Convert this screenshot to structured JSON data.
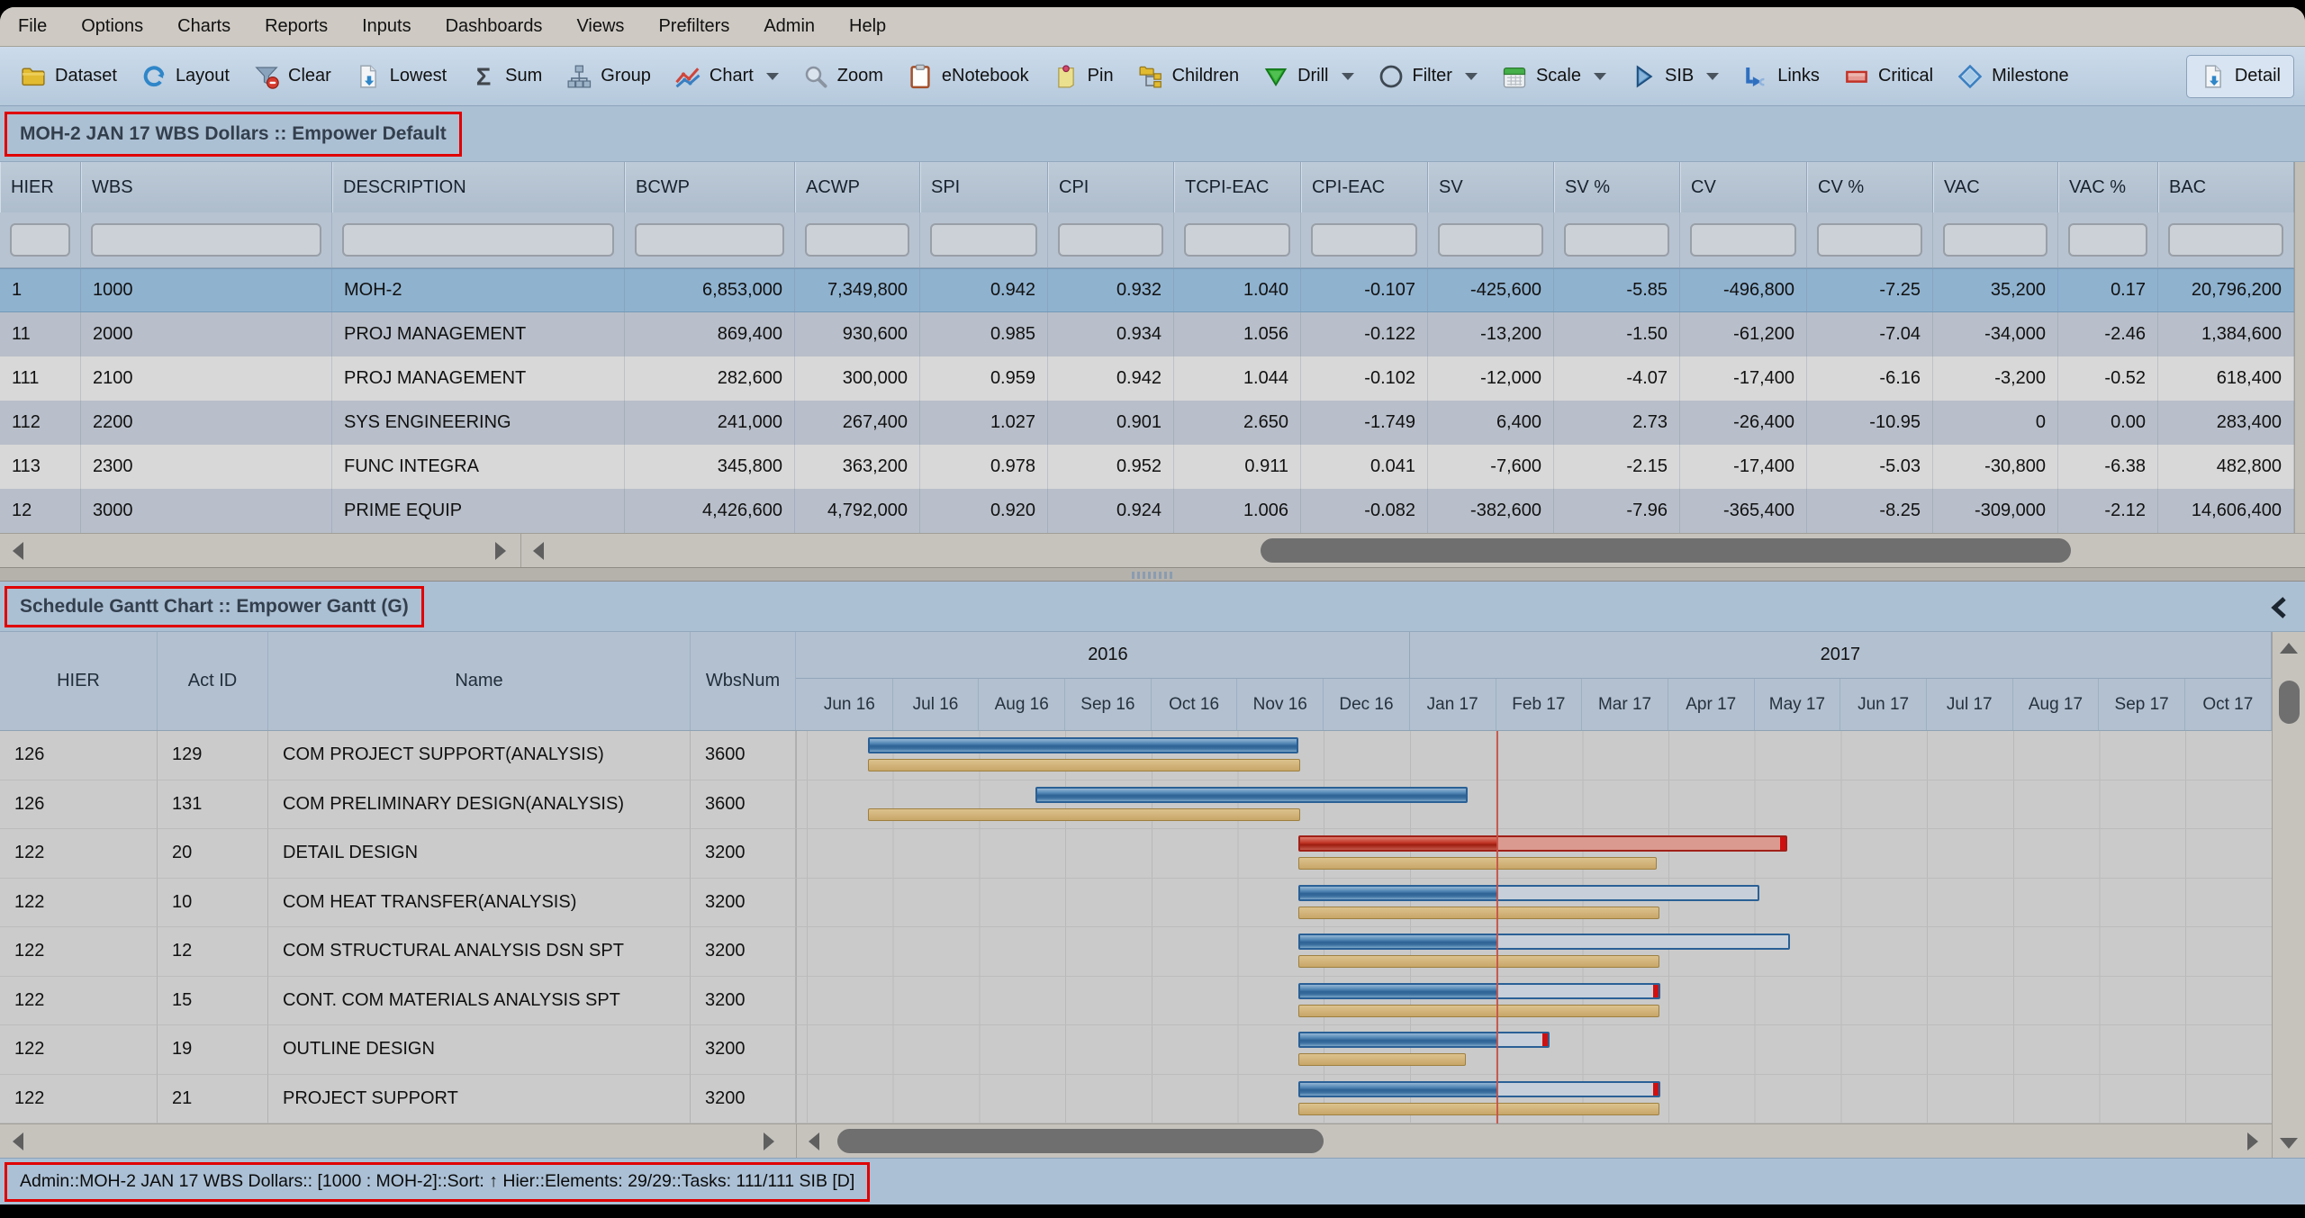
{
  "menu": {
    "items": [
      "File",
      "Options",
      "Charts",
      "Reports",
      "Inputs",
      "Dashboards",
      "Views",
      "Prefilters",
      "Admin",
      "Help"
    ]
  },
  "toolbar": {
    "items": [
      {
        "label": "Dataset",
        "icon": "folder-icon"
      },
      {
        "label": "Layout",
        "icon": "refresh-icon"
      },
      {
        "label": "Clear",
        "icon": "clear-filter-icon"
      },
      {
        "label": "Lowest",
        "icon": "page-arrow-icon"
      },
      {
        "label": "Sum",
        "icon": "sigma-icon"
      },
      {
        "label": "Group",
        "icon": "org-tree-icon"
      },
      {
        "label": "Chart",
        "icon": "chart-icon",
        "dropdown": true
      },
      {
        "label": "Zoom",
        "icon": "magnifier-icon"
      },
      {
        "label": "eNotebook",
        "icon": "clipboard-icon"
      },
      {
        "label": "Pin",
        "icon": "pin-icon"
      },
      {
        "label": "Children",
        "icon": "children-icon"
      },
      {
        "label": "Drill",
        "icon": "drill-icon",
        "dropdown": true
      },
      {
        "label": "Filter",
        "icon": "filter-circle-icon",
        "dropdown": true
      },
      {
        "label": "Scale",
        "icon": "calendar-icon",
        "dropdown": true
      },
      {
        "label": "SIB",
        "icon": "play-icon",
        "dropdown": true
      },
      {
        "label": "Links",
        "icon": "links-icon"
      },
      {
        "label": "Critical",
        "icon": "critical-icon"
      },
      {
        "label": "Milestone",
        "icon": "milestone-icon"
      },
      {
        "label": "Detail",
        "icon": "detail-icon",
        "pressed": true
      }
    ]
  },
  "grid": {
    "title": "MOH-2 JAN 17 WBS Dollars :: Empower Default",
    "columns": [
      "HIER",
      "WBS",
      "DESCRIPTION",
      "BCWP",
      "ACWP",
      "SPI",
      "CPI",
      "TCPI-EAC",
      "CPI-EAC",
      "SV",
      "SV %",
      "CV",
      "CV %",
      "VAC",
      "VAC %",
      "BAC"
    ],
    "selected_row_index": 0,
    "rows": [
      [
        "1",
        "1000",
        "MOH-2",
        "6,853,000",
        "7,349,800",
        "0.942",
        "0.932",
        "1.040",
        "-0.107",
        "-425,600",
        "-5.85",
        "-496,800",
        "-7.25",
        "35,200",
        "0.17",
        "20,796,200"
      ],
      [
        "11",
        "2000",
        "PROJ MANAGEMENT",
        "869,400",
        "930,600",
        "0.985",
        "0.934",
        "1.056",
        "-0.122",
        "-13,200",
        "-1.50",
        "-61,200",
        "-7.04",
        "-34,000",
        "-2.46",
        "1,384,600"
      ],
      [
        "111",
        "2100",
        "PROJ MANAGEMENT",
        "282,600",
        "300,000",
        "0.959",
        "0.942",
        "1.044",
        "-0.102",
        "-12,000",
        "-4.07",
        "-17,400",
        "-6.16",
        "-3,200",
        "-0.52",
        "618,400"
      ],
      [
        "112",
        "2200",
        "SYS ENGINEERING",
        "241,000",
        "267,400",
        "1.027",
        "0.901",
        "2.650",
        "-1.749",
        "6,400",
        "2.73",
        "-26,400",
        "-10.95",
        "0",
        "0.00",
        "283,400"
      ],
      [
        "113",
        "2300",
        "FUNC INTEGRA",
        "345,800",
        "363,200",
        "0.978",
        "0.952",
        "0.911",
        "0.041",
        "-7,600",
        "-2.15",
        "-17,400",
        "-5.03",
        "-30,800",
        "-6.38",
        "482,800"
      ],
      [
        "12",
        "3000",
        "PRIME EQUIP",
        "4,426,600",
        "4,792,000",
        "0.920",
        "0.924",
        "1.006",
        "-0.082",
        "-382,600",
        "-7.96",
        "-365,400",
        "-8.25",
        "-309,000",
        "-2.12",
        "14,606,400"
      ]
    ]
  },
  "gantt": {
    "title": "Schedule Gantt Chart :: Empower Gantt (G)",
    "columns": [
      "HIER",
      "Act ID",
      "Name",
      "WbsNum"
    ],
    "years": [
      {
        "label": "2016",
        "months": 7
      },
      {
        "label": "2017",
        "months": 10
      }
    ],
    "months": [
      "Jun 16",
      "Jul 16",
      "Aug 16",
      "Sep 16",
      "Oct 16",
      "Nov 16",
      "Dec 16",
      "Jan 17",
      "Feb 17",
      "Mar 17",
      "Apr 17",
      "May 17",
      "Jun 17",
      "Jul 17",
      "Aug 17",
      "Sep 17",
      "Oct 17"
    ],
    "status_line_month": 8.0,
    "rows": [
      {
        "cells": [
          "126",
          "129",
          "COM PROJECT SUPPORT(ANALYSIS)",
          "3600"
        ],
        "bar": {
          "start": 0.7,
          "end": 5.7,
          "done": 5.7,
          "critical": false,
          "red_tip": true
        },
        "baseline": {
          "start": 0.7,
          "end": 5.72
        }
      },
      {
        "cells": [
          "126",
          "131",
          "COM PRELIMINARY DESIGN(ANALYSIS)",
          "3600"
        ],
        "bar": {
          "start": 2.64,
          "end": 7.66,
          "done": 7.66,
          "critical": false,
          "red_tip": true
        },
        "baseline": {
          "start": 0.7,
          "end": 5.72
        }
      },
      {
        "cells": [
          "122",
          "20",
          "DETAIL DESIGN",
          "3200"
        ],
        "bar": {
          "start": 5.7,
          "end": 11.37,
          "done": 8.0,
          "critical": true,
          "red_tip": true
        },
        "baseline": {
          "start": 5.7,
          "end": 9.85
        }
      },
      {
        "cells": [
          "122",
          "10",
          "COM HEAT TRANSFER(ANALYSIS)",
          "3200"
        ],
        "bar": {
          "start": 5.7,
          "end": 11.05,
          "done": 8.0,
          "critical": false,
          "red_tip": false
        },
        "baseline": {
          "start": 5.7,
          "end": 9.88
        }
      },
      {
        "cells": [
          "122",
          "12",
          "COM STRUCTURAL ANALYSIS DSN SPT",
          "3200"
        ],
        "bar": {
          "start": 5.7,
          "end": 11.4,
          "done": 8.0,
          "critical": false,
          "red_tip": false
        },
        "baseline": {
          "start": 5.7,
          "end": 9.88
        }
      },
      {
        "cells": [
          "122",
          "15",
          "CONT. COM MATERIALS ANALYSIS SPT",
          "3200"
        ],
        "bar": {
          "start": 5.7,
          "end": 9.9,
          "done": 8.0,
          "critical": false,
          "red_tip": true
        },
        "baseline": {
          "start": 5.7,
          "end": 9.88
        }
      },
      {
        "cells": [
          "122",
          "19",
          "OUTLINE DESIGN",
          "3200"
        ],
        "bar": {
          "start": 5.7,
          "end": 8.61,
          "done": 8.0,
          "critical": false,
          "red_tip": true
        },
        "baseline": {
          "start": 5.7,
          "end": 7.64
        }
      },
      {
        "cells": [
          "122",
          "21",
          "PROJECT SUPPORT",
          "3200"
        ],
        "bar": {
          "start": 5.7,
          "end": 9.9,
          "done": 8.0,
          "critical": false,
          "red_tip": true
        },
        "baseline": {
          "start": 5.7,
          "end": 9.88
        }
      }
    ]
  },
  "status_bar": {
    "text": "Admin::MOH-2 JAN 17 WBS Dollars:: [1000 : MOH-2]::Sort: ↑ Hier::Elements: 29/29::Tasks: 111/111 SIB [D]"
  },
  "colors": {
    "selected_row": "#8fb2cf",
    "highlight_box": "#e00000",
    "bar_actual_blue": "#3c74a4",
    "bar_baseline_tan": "#d4b67e",
    "bar_critical_red": "#c03428",
    "status_line_red": "#c94f45"
  }
}
